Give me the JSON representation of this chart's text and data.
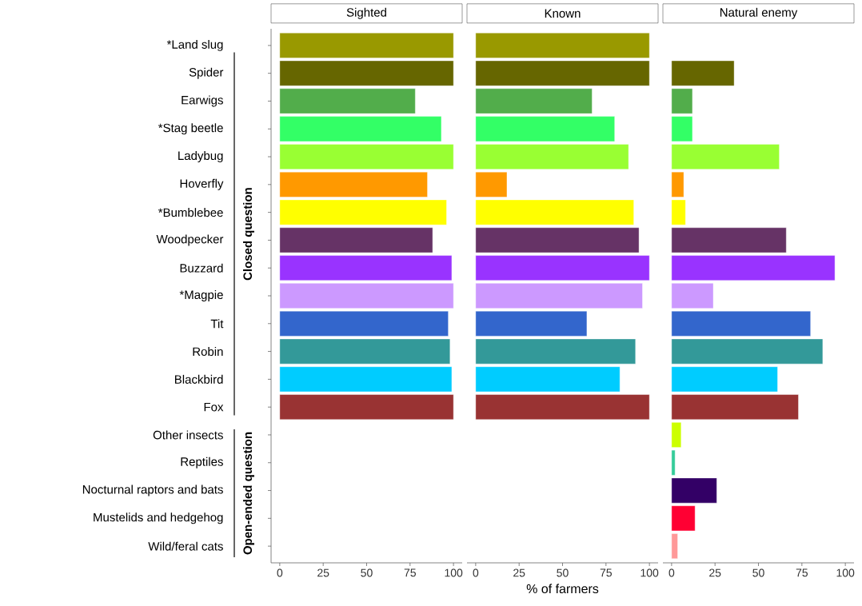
{
  "chart_data": [
    {
      "type": "bar",
      "orientation": "horizontal",
      "title": "Sighted",
      "categories": [
        "*Land slug",
        "Spider",
        "Earwigs",
        "*Stag beetle",
        "Ladybug",
        "Hoverfly",
        "*Bumblebee",
        "Woodpecker",
        "Buzzard",
        "*Magpie",
        "Tit",
        "Robin",
        "Blackbird",
        "Fox",
        "Other insects",
        "Reptiles",
        "Nocturnal raptors and bats",
        "Mustelids and hedgehog",
        "Wild/feral cats"
      ],
      "values": [
        100,
        100,
        78,
        93,
        100,
        85,
        96,
        88,
        99,
        100,
        97,
        98,
        99,
        100,
        null,
        null,
        null,
        null,
        null
      ],
      "colors": [
        "#999900",
        "#666600",
        "#52ad4b",
        "#33ff66",
        "#99ff33",
        "#ff9900",
        "#ffff00",
        "#663366",
        "#9933ff",
        "#cc99ff",
        "#3366cc",
        "#339999",
        "#00ccff",
        "#993333",
        "#ccff00",
        "#33cc99",
        "#330066",
        "#ff0033",
        "#ff9999"
      ],
      "xlim": [
        -5,
        105
      ],
      "xticks": [
        0,
        25,
        50,
        75,
        100
      ],
      "annotations": [
        "Closed question",
        "Open-ended question"
      ]
    },
    {
      "type": "bar",
      "orientation": "horizontal",
      "title": "Known",
      "xlabel": "% of farmers",
      "categories": [
        null,
        null,
        null,
        null,
        null,
        null,
        null,
        null,
        null,
        null,
        null,
        null,
        null,
        null,
        null,
        null,
        null,
        null,
        null
      ],
      "values": [
        100,
        100,
        67,
        80,
        88,
        18,
        91,
        94,
        100,
        96,
        64,
        92,
        83,
        100,
        null,
        null,
        null,
        null,
        null
      ],
      "colors": [
        "#999900",
        "#666600",
        "#52ad4b",
        "#33ff66",
        "#99ff33",
        "#ff9900",
        "#ffff00",
        "#663366",
        "#9933ff",
        "#cc99ff",
        "#3366cc",
        "#339999",
        "#00ccff",
        "#993333",
        "#ccff00",
        "#33cc99",
        "#330066",
        "#ff0033",
        "#ff9999"
      ],
      "xlim": [
        -5,
        105
      ],
      "xticks": [
        0,
        25,
        50,
        75,
        100
      ],
      "tick_labels": "x"
    },
    {
      "type": "bar",
      "orientation": "horizontal",
      "title": "Natural enemy",
      "categories": [
        null,
        null,
        null,
        null,
        null,
        null,
        null,
        null,
        null,
        null,
        null,
        null,
        null,
        null,
        null,
        null,
        null,
        null,
        null
      ],
      "values": [
        null,
        36,
        12,
        12,
        62,
        7,
        8,
        66,
        94,
        24,
        80,
        87,
        61,
        73,
        5.5,
        2,
        26,
        13.5,
        3.5
      ],
      "colors": [
        "#999900",
        "#666600",
        "#52ad4b",
        "#33ff66",
        "#99ff33",
        "#ff9900",
        "#ffff00",
        "#663366",
        "#9933ff",
        "#cc99ff",
        "#3366cc",
        "#339999",
        "#00ccff",
        "#993333",
        "#ccff00",
        "#33cc99",
        "#330066",
        "#ff0033",
        "#ff9999"
      ],
      "xlim": [
        -5,
        105
      ],
      "xticks": [
        0,
        25,
        50,
        75,
        100
      ],
      "tick_labels": "x"
    }
  ]
}
